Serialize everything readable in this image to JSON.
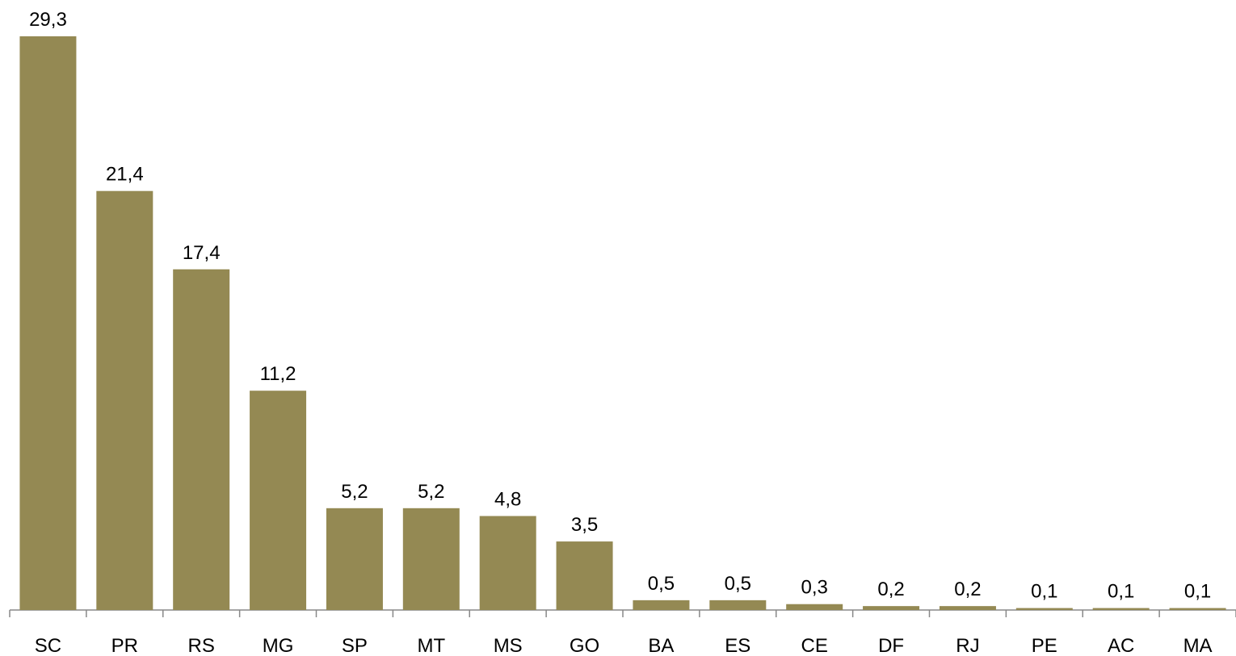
{
  "chart_data": {
    "type": "bar",
    "categories": [
      "SC",
      "PR",
      "RS",
      "MG",
      "SP",
      "MT",
      "MS",
      "GO",
      "BA",
      "ES",
      "CE",
      "DF",
      "RJ",
      "PE",
      "AC",
      "MA"
    ],
    "values": [
      29.3,
      21.4,
      17.4,
      11.2,
      5.2,
      5.2,
      4.8,
      3.5,
      0.5,
      0.5,
      0.3,
      0.2,
      0.2,
      0.1,
      0.1,
      0.1
    ],
    "value_labels": [
      "29,3",
      "21,4",
      "17,4",
      "11,2",
      "5,2",
      "5,2",
      "4,8",
      "3,5",
      "0,5",
      "0,5",
      "0,3",
      "0,2",
      "0,2",
      "0,1",
      "0,1",
      "0,1"
    ],
    "title": "",
    "xlabel": "",
    "ylabel": "",
    "ylim": [
      0,
      29.3
    ],
    "grid": false,
    "legend": "none",
    "bar_color": "#948953",
    "axis_color": "#888888"
  }
}
